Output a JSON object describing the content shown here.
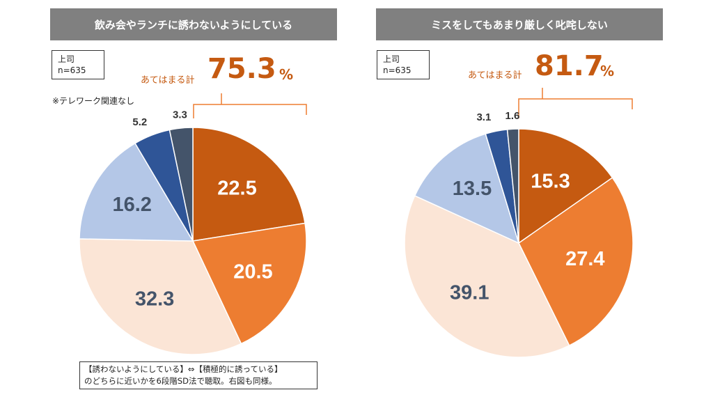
{
  "charts": [
    {
      "title": "飲み会やランチに誘わないようにしている",
      "group": "上司",
      "n": "n=635",
      "total_label": "あてはまる計",
      "total_value": "75.3",
      "unit": "%",
      "note": "※テレワーク関連なし"
    },
    {
      "title": "ミスをしてもあまり厳しく叱咤しない",
      "group": "上司",
      "n": "n=635",
      "total_label": "あてはまる計",
      "total_value": "81.7",
      "unit": "%"
    }
  ],
  "footnote": {
    "line1": "【誘わないようにしている】⇔【積極的に誘っている】",
    "line2": "のどちらに近いかを6段階SD法で聴取。右図も同様。"
  },
  "colors": [
    "#C55A11",
    "#ED7D31",
    "#FBE5D6",
    "#B4C7E7",
    "#2F5597",
    "#44546A"
  ],
  "chart_data": [
    {
      "type": "pie",
      "title": "飲み会やランチに誘わないようにしている",
      "values": [
        22.5,
        20.5,
        32.3,
        16.2,
        5.2,
        3.3
      ],
      "labels": [
        "22.5",
        "20.5",
        "32.3",
        "16.2",
        "5.2",
        "3.3"
      ]
    },
    {
      "type": "pie",
      "title": "ミスをしてもあまり厳しく叱咤しない",
      "values": [
        15.3,
        27.4,
        39.1,
        13.5,
        3.1,
        1.6
      ],
      "labels": [
        "15.3",
        "27.4",
        "39.1",
        "13.5",
        "3.1",
        "1.6"
      ]
    }
  ]
}
